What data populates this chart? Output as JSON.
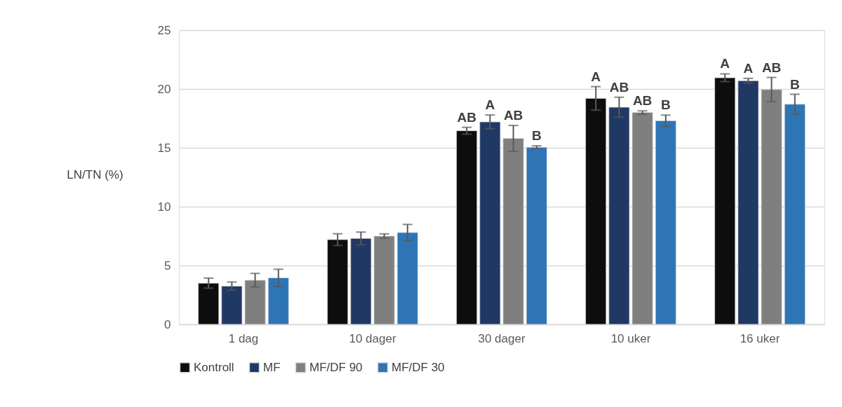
{
  "chart_data": {
    "type": "bar",
    "ylabel": "LN/TN (%)",
    "categories": [
      "1 dag",
      "10 dager",
      "30 dager",
      "10 uker",
      "16 uker"
    ],
    "ylim": [
      0,
      25
    ],
    "yticks": [
      0,
      5,
      10,
      15,
      20,
      25
    ],
    "grid": "y",
    "legend": "bottom",
    "series": [
      {
        "name": "Kontroll",
        "color": "#0d0d0d",
        "values": [
          3.5,
          7.2,
          16.45,
          19.2,
          20.95
        ],
        "errors": [
          0.43,
          0.5,
          0.29,
          1.0,
          0.33
        ],
        "value_labels": [
          null,
          null,
          "AB",
          "A",
          "A"
        ]
      },
      {
        "name": "MF",
        "color": "#203864",
        "values": [
          3.25,
          7.3,
          17.2,
          18.45,
          20.7
        ],
        "errors": [
          0.35,
          0.54,
          0.59,
          0.85,
          0.2
        ],
        "value_labels": [
          null,
          null,
          "A",
          "AB",
          "A"
        ]
      },
      {
        "name": "MF/DF 90",
        "color": "#7f7f7f",
        "values": [
          3.75,
          7.5,
          15.8,
          18.0,
          19.95
        ],
        "errors": [
          0.58,
          0.19,
          1.1,
          0.14,
          1.03
        ],
        "value_labels": [
          null,
          null,
          "AB",
          "AB",
          "AB"
        ]
      },
      {
        "name": "MF/DF 30",
        "color": "#2e75b6",
        "values": [
          3.95,
          7.8,
          15.05,
          17.3,
          18.7
        ],
        "errors": [
          0.73,
          0.69,
          0.12,
          0.48,
          0.85
        ],
        "value_labels": [
          null,
          null,
          "B",
          "B",
          "B"
        ]
      }
    ]
  }
}
